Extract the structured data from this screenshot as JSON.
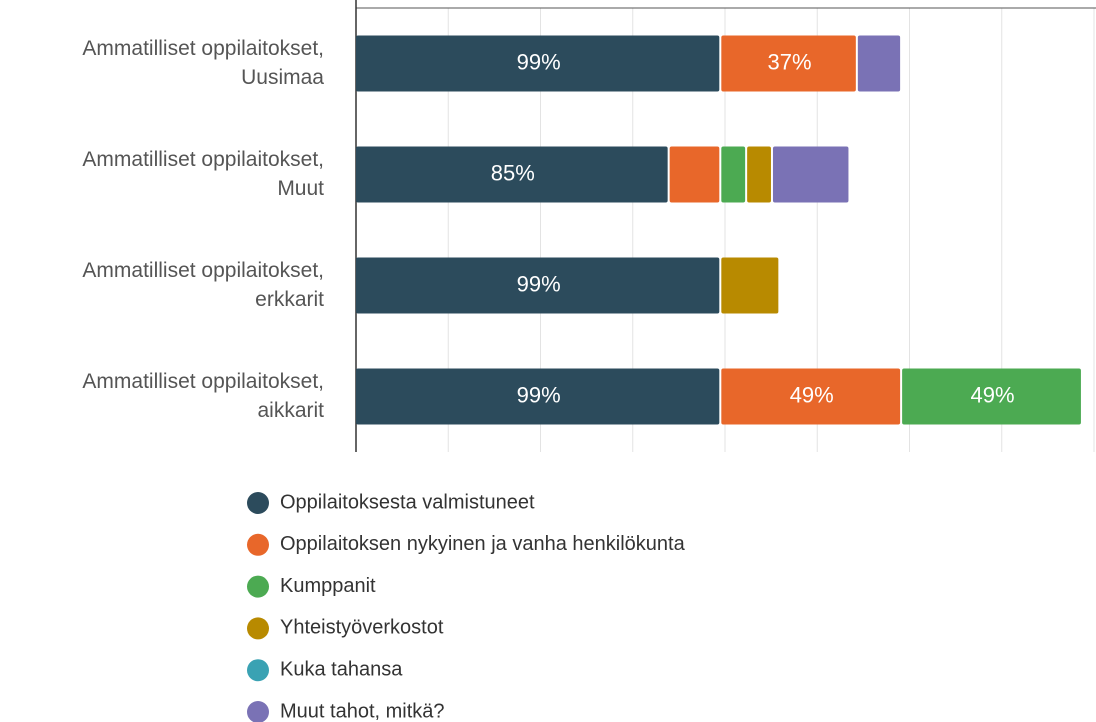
{
  "chart_data": {
    "type": "stacked-bar-horizontal",
    "categories": [
      "Ammatilliset oppilaitokset,\nUusimaa",
      "Ammatilliset oppilaitokset,\nMuut",
      "Ammatilliset oppilaitokset,\nerkkarit",
      "Ammatilliset oppilaitokset,\naikkarit"
    ],
    "series": [
      {
        "name": "Oppilaitoksesta valmistuneet",
        "color": "#2c4b5c",
        "values": [
          99,
          85,
          99,
          99
        ],
        "value_labels": [
          "99%",
          "85%",
          "99%",
          "99%"
        ]
      },
      {
        "name": "Oppilaitoksen nykyinen ja vanha henkilökunta",
        "color": "#e8672a",
        "values": [
          37,
          14,
          null,
          49
        ],
        "value_labels": [
          "37%",
          null,
          null,
          "49%"
        ]
      },
      {
        "name": "Kumppanit",
        "color": "#4caa52",
        "values": [
          null,
          7,
          null,
          49
        ],
        "value_labels": [
          null,
          null,
          null,
          "49%"
        ]
      },
      {
        "name": "Yhteistyöverkostot",
        "color": "#b88a00",
        "values": [
          null,
          7,
          16,
          null
        ]
      },
      {
        "name": "Kuka tahansa",
        "color": "#3aa2b3",
        "values": [
          null,
          null,
          null,
          null
        ]
      },
      {
        "name": "Muut tahot, mitkä?",
        "color": "#7a72b5",
        "values": [
          12,
          21,
          null,
          null
        ]
      }
    ],
    "xlim": [
      0,
      200
    ],
    "xticks": [
      0,
      25,
      50,
      75,
      100,
      125,
      150,
      175,
      200
    ],
    "grid": true
  }
}
